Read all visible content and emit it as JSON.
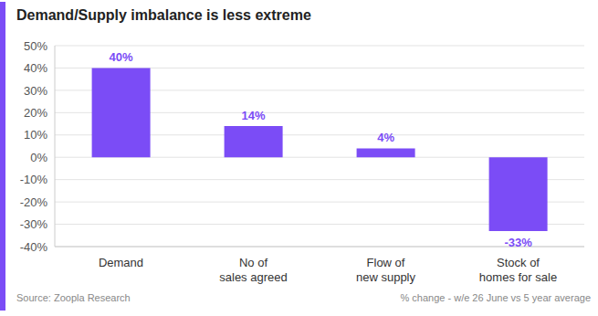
{
  "chart_data": {
    "type": "bar",
    "title": "Demand/Supply imbalance is less extreme",
    "categories": [
      "Demand",
      "No of sales agreed",
      "Flow of new supply",
      "Stock of homes for sale"
    ],
    "values": [
      40,
      14,
      4,
      -33
    ],
    "value_labels": [
      "40%",
      "14%",
      "4%",
      "-33%"
    ],
    "data_labels": true,
    "color": "#7b4cf6",
    "ylim": [
      -40,
      50
    ],
    "yticks": [
      {
        "value": -40,
        "label": "-40%"
      },
      {
        "value": -30,
        "label": "-30%"
      },
      {
        "value": -20,
        "label": "-20%"
      },
      {
        "value": -10,
        "label": "-10%"
      },
      {
        "value": 0,
        "label": "0%"
      },
      {
        "value": 10,
        "label": "10%"
      },
      {
        "value": 20,
        "label": "20%"
      },
      {
        "value": 30,
        "label": "30%"
      },
      {
        "value": 40,
        "label": "40%"
      },
      {
        "value": 50,
        "label": "50%"
      }
    ],
    "grid": true,
    "source": "Source: Zoopla Research",
    "note": "% change - w/e 26 June vs 5 year average"
  }
}
